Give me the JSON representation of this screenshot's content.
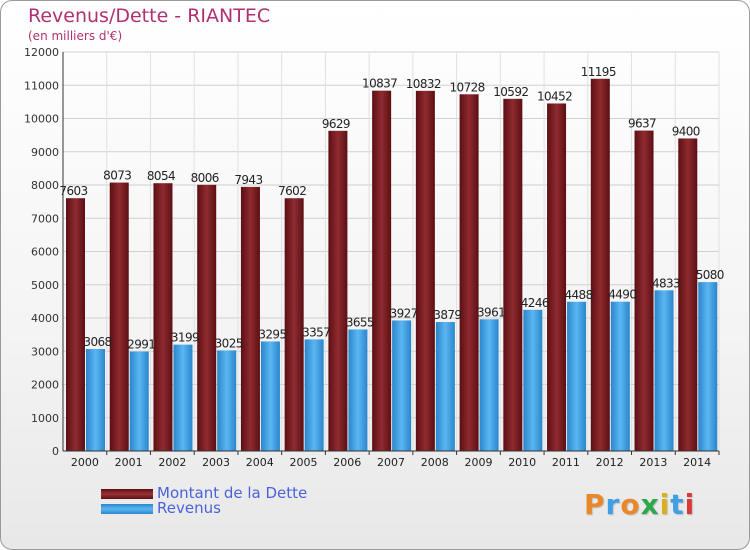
{
  "title": "Revenus/Dette - RIANTEC",
  "subtitle": "(en milliers d'€)",
  "brand": "Proxiti",
  "colors": {
    "dette": "#7a1e22",
    "revenus": "#3d9fe6",
    "title": "#b03070",
    "legend_text": "#4a62d8"
  },
  "legend": {
    "dette_label": "Montant de la Dette",
    "revenus_label": "Revenus"
  },
  "chart_data": {
    "type": "bar",
    "categories": [
      "2000",
      "2001",
      "2002",
      "2003",
      "2004",
      "2005",
      "2006",
      "2007",
      "2008",
      "2009",
      "2010",
      "2011",
      "2012",
      "2013",
      "2014"
    ],
    "series": [
      {
        "name": "Montant de la Dette",
        "values": [
          7603,
          8073,
          8054,
          8006,
          7943,
          7602,
          9629,
          10837,
          10832,
          10728,
          10592,
          10452,
          11195,
          9637,
          9400
        ]
      },
      {
        "name": "Revenus",
        "values": [
          3068,
          2991,
          3199,
          3025,
          3295,
          3357,
          3655,
          3927,
          3879,
          3961,
          4246,
          4488,
          4490,
          4833,
          5080
        ]
      }
    ],
    "ylim": [
      0,
      12000
    ],
    "yticks": [
      0,
      1000,
      2000,
      3000,
      4000,
      5000,
      6000,
      7000,
      8000,
      9000,
      10000,
      11000,
      12000
    ],
    "grid": true,
    "legend_position": "bottom-left"
  }
}
